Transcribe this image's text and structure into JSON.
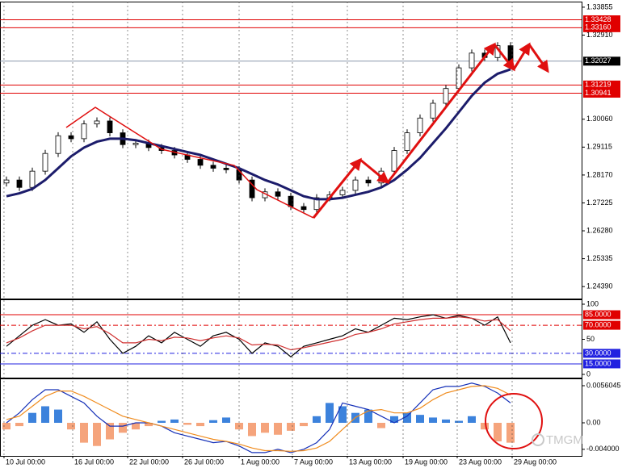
{
  "chart_data": [
    {
      "type": "candlestick",
      "xlim": [
        -0.5,
        44.5
      ],
      "ylim": [
        1.23985,
        1.34044
      ],
      "open": [
        1.279,
        1.28,
        1.2775,
        1.283,
        1.289,
        1.295,
        1.294,
        1.299,
        1.3,
        1.296,
        1.292,
        1.2925,
        1.291,
        1.29,
        1.2885,
        1.287,
        1.285,
        1.284,
        1.2835,
        1.28,
        1.274,
        1.276,
        1.2745,
        1.271,
        1.27,
        1.274,
        1.275,
        1.2765,
        1.28,
        1.279,
        1.283,
        1.29,
        1.296,
        1.301,
        1.306,
        1.311,
        1.318,
        1.323,
        1.3215,
        1.3255
      ],
      "high": [
        1.2812,
        1.2812,
        1.2842,
        1.2902,
        1.2962,
        1.2962,
        1.3002,
        1.3012,
        1.3012,
        1.2972,
        1.2937,
        1.2937,
        1.2922,
        1.2912,
        1.2897,
        1.2882,
        1.2862,
        1.2852,
        1.2847,
        1.2812,
        1.2772,
        1.2772,
        1.2757,
        1.2722,
        1.2752,
        1.2762,
        1.2777,
        1.2812,
        1.2812,
        1.2842,
        1.2912,
        1.2972,
        1.3022,
        1.3072,
        1.3122,
        1.3192,
        1.3242,
        1.3242,
        1.3267,
        1.3267
      ],
      "low": [
        1.2778,
        1.2763,
        1.2763,
        1.2818,
        1.2878,
        1.2928,
        1.2928,
        1.2978,
        1.2948,
        1.2908,
        1.2908,
        1.2898,
        1.2888,
        1.2873,
        1.2858,
        1.2838,
        1.2828,
        1.2823,
        1.2788,
        1.2728,
        1.2728,
        1.2733,
        1.2698,
        1.2688,
        1.2688,
        1.2728,
        1.2738,
        1.2753,
        1.2778,
        1.2778,
        1.2818,
        1.2888,
        1.2948,
        1.2998,
        1.3048,
        1.3098,
        1.3168,
        1.3203,
        1.3203,
        1.3191
      ],
      "close": [
        1.28,
        1.2775,
        1.283,
        1.289,
        1.295,
        1.294,
        1.299,
        1.3,
        1.296,
        1.292,
        1.2925,
        1.291,
        1.29,
        1.2885,
        1.287,
        1.285,
        1.284,
        1.2835,
        1.28,
        1.274,
        1.276,
        1.2745,
        1.271,
        1.27,
        1.274,
        1.275,
        1.2765,
        1.28,
        1.279,
        1.283,
        1.29,
        1.296,
        1.301,
        1.306,
        1.311,
        1.318,
        1.323,
        1.3215,
        1.3255,
        1.3203
      ],
      "series": [
        {
          "color": "#1c1c6b",
          "values": [
            1.2745,
            1.2755,
            1.277,
            1.28,
            1.284,
            1.288,
            1.291,
            1.293,
            1.294,
            1.294,
            1.2935,
            1.2925,
            1.2915,
            1.2905,
            1.2895,
            1.2885,
            1.287,
            1.2855,
            1.284,
            1.282,
            1.28,
            1.2785,
            1.2765,
            1.2745,
            1.2735,
            1.2735,
            1.274,
            1.275,
            1.276,
            1.2775,
            1.28,
            1.2835,
            1.2875,
            1.2925,
            1.2975,
            1.303,
            1.3085,
            1.313,
            1.316,
            1.3175
          ]
        }
      ],
      "yticks": [
        1.33855,
        {
          "value": 1.3291,
          "label": "1.32910"
        },
        {
          "value": 1.3006,
          "label": "1.30060"
        },
        1.29115,
        {
          "value": 1.2817,
          "label": "1.28170"
        },
        1.27225,
        {
          "value": 1.2628,
          "label": "1.26280"
        },
        1.25335,
        {
          "value": 1.2439,
          "label": "1.24390"
        }
      ],
      "levels": [
        {
          "value": 1.33428,
          "color": "#e00000"
        },
        {
          "value": 1.3316,
          "label": "1.33160",
          "color": "#e00000"
        },
        {
          "value": 1.32027,
          "color": "#8a97ab",
          "box_color": "#000000"
        },
        {
          "value": 1.31219,
          "color": "#e00000"
        },
        {
          "value": 1.30941,
          "color": "#e00000"
        }
      ]
    },
    {
      "type": "line",
      "xlim": [
        -0.5,
        44.5
      ],
      "ylim": [
        -4.6,
        106.9
      ],
      "series": [
        {
          "color": "#000000",
          "values": [
            40,
            55,
            70,
            78,
            70,
            72,
            60,
            75,
            50,
            30,
            40,
            55,
            45,
            60,
            50,
            40,
            55,
            60,
            50,
            30,
            45,
            40,
            25,
            40,
            45,
            50,
            55,
            65,
            60,
            70,
            80,
            78,
            82,
            85,
            80,
            84,
            80,
            70,
            82,
            45
          ]
        },
        {
          "color": "#d03030",
          "values": [
            45,
            52,
            62,
            70,
            70,
            70,
            65,
            68,
            58,
            45,
            45,
            50,
            48,
            53,
            52,
            48,
            52,
            55,
            52,
            42,
            43,
            42,
            35,
            38,
            42,
            46,
            50,
            57,
            60,
            65,
            72,
            75,
            78,
            80,
            80,
            82,
            80,
            76,
            78,
            62
          ]
        }
      ],
      "yticks": [
        100,
        50,
        0
      ],
      "levels": [
        {
          "value": 85,
          "label": "85.0000",
          "color": "#e00000",
          "dashed": false
        },
        {
          "value": 70,
          "label": "70.0000",
          "color": "#e00000",
          "dashed": true
        },
        {
          "value": 30,
          "label": "30.0000",
          "color": "#2020e0",
          "dashed": true
        },
        {
          "value": 15,
          "label": "15.0000",
          "color": "#2020e0",
          "dashed": false
        }
      ]
    },
    {
      "type": "macd",
      "xlim": [
        -0.5,
        44.5
      ],
      "ylim": [
        -0.004995,
        0.006701
      ],
      "histogram": {
        "color": "#3c82dc",
        "negative_color": "#f5a47c",
        "values": [
          -0.001,
          -0.0005,
          0.0015,
          0.0025,
          0.002,
          -0.001,
          -0.003,
          -0.0035,
          -0.0025,
          -0.0015,
          -0.001,
          -0.0005,
          0.0003,
          0.0005,
          -0.0003,
          -0.0005,
          0.0004,
          0.0008,
          -0.001,
          -0.002,
          -0.0015,
          -0.0018,
          -0.0012,
          -0.0005,
          0.001,
          0.003,
          0.0025,
          0.0015,
          0.002,
          -0.0008,
          0.001,
          0.0015,
          0.0012,
          0.0008,
          0.0005,
          0.0003,
          0.001,
          -0.001,
          -0.0028,
          -0.003
        ]
      },
      "series": [
        {
          "color": "#1530b8",
          "values": [
            0.0,
            0.0015,
            0.0035,
            0.005,
            0.005,
            0.004,
            0.003,
            0.001,
            -0.0005,
            -0.0005,
            0.0,
            0.0,
            -0.0005,
            -0.0015,
            -0.002,
            -0.0025,
            -0.003,
            -0.0028,
            -0.0035,
            -0.0045,
            -0.0045,
            -0.004,
            -0.0045,
            -0.004,
            -0.003,
            -0.001,
            0.003,
            0.0025,
            0.002,
            0.001,
            0.0,
            0.001,
            0.003,
            0.005,
            0.0055,
            0.0055,
            0.006,
            0.0055,
            0.0045,
            0.003
          ]
        },
        {
          "color": "#f08c1e",
          "values": [
            0.0005,
            0.001,
            0.0025,
            0.004,
            0.0048,
            0.0048,
            0.004,
            0.003,
            0.002,
            0.001,
            0.0005,
            0.0,
            -0.0005,
            -0.001,
            -0.0015,
            -0.002,
            -0.0025,
            -0.0028,
            -0.0032,
            -0.0038,
            -0.0042,
            -0.0042,
            -0.0043,
            -0.0042,
            -0.0038,
            -0.0028,
            -0.001,
            0.0008,
            0.0018,
            0.002,
            0.0015,
            0.0015,
            0.0022,
            0.0035,
            0.0045,
            0.005,
            0.0055,
            0.0056,
            0.0052,
            0.0042
          ]
        }
      ],
      "yticks": [
        0.0056045,
        {
          "value": 0,
          "label": "0.00"
        },
        {
          "value": -0.004,
          "label": "-0.004000"
        }
      ],
      "xticks": [
        {
          "value": -0.19,
          "label": "10 Jul 00:00"
        },
        {
          "value": 5.125,
          "label": "16 Jul 00:00"
        },
        {
          "value": 9.375,
          "label": "22 Jul 00:00"
        },
        {
          "value": 13.625,
          "label": "26 Jul 00:00"
        },
        {
          "value": 18,
          "label": "1 Aug 00:00"
        },
        {
          "value": 22.125,
          "label": "7 Aug 00:00"
        },
        {
          "value": 26.375,
          "label": "13 Aug 00:00"
        },
        {
          "value": 30.6875,
          "label": "19 Aug 00:00"
        },
        {
          "value": 34.875,
          "label": "23 Aug 00:00"
        },
        {
          "value": 39.125,
          "label": "29 Aug 00:00"
        }
      ]
    }
  ],
  "watermark": "TMGM"
}
